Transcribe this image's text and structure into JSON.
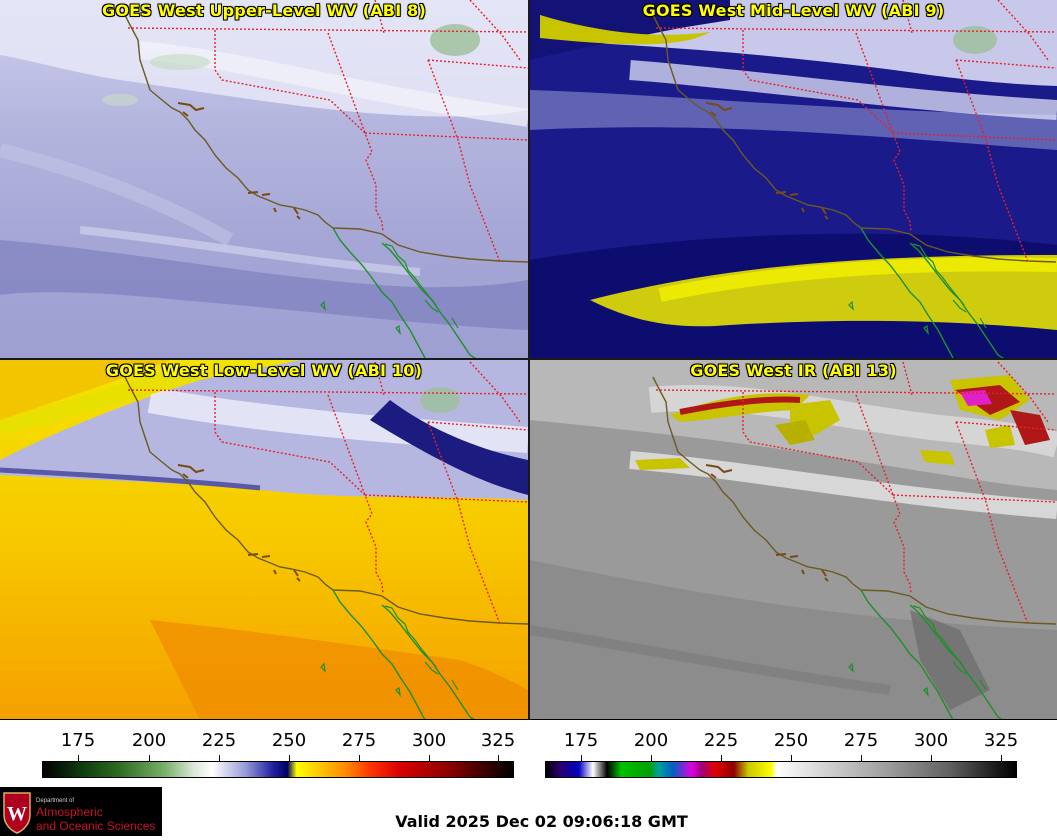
{
  "panels": {
    "upper": {
      "title": "GOES West Upper-Level WV (ABI 8)"
    },
    "mid": {
      "title": "GOES West Mid-Level WV (ABI 9)"
    },
    "low": {
      "title": "GOES West Low-Level WV (ABI 10)"
    },
    "ir": {
      "title": "GOES West IR (ABI 13)"
    }
  },
  "scales": {
    "wv": {
      "ticks": [
        "175",
        "200",
        "225",
        "250",
        "275",
        "300",
        "325"
      ]
    },
    "ir": {
      "ticks": [
        "175",
        "200",
        "225",
        "250",
        "275",
        "300",
        "325"
      ]
    }
  },
  "logo": {
    "line1": "Department of",
    "line2": "Atmospheric",
    "line3": "and Oceanic Sciences",
    "letter": "W"
  },
  "valid_time": "Valid 2025 Dec 02 09:06:18 GMT",
  "colors": {
    "title": "#ffff00",
    "state_border": "#e8202a",
    "coast_us": "#6b5a22",
    "coast_mx": "#1f8f2a"
  }
}
